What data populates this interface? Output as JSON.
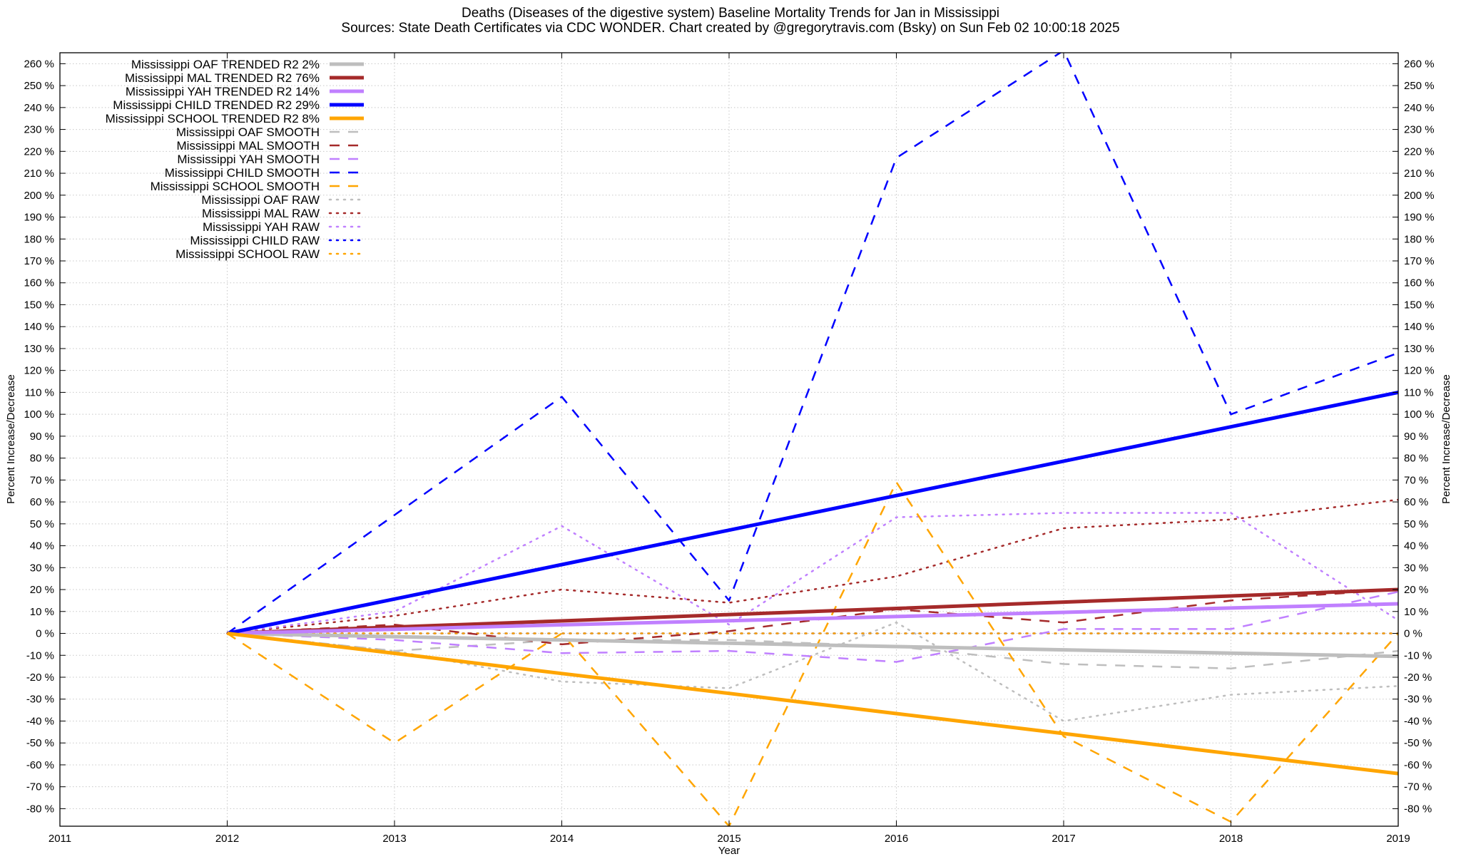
{
  "chart_data": {
    "type": "line",
    "title": "Deaths (Diseases of the digestive system)  Baseline Mortality Trends for Jan in Mississippi",
    "subtitle": "Sources: State Death Certificates via CDC WONDER.              Chart created by @gregorytravis.com (Bsky) on Sun Feb 02 10:00:18 2025",
    "xlabel": "Year",
    "ylabel": "Percent Increase/Decrease",
    "y2label": "Percent Increase/Decrease",
    "xlim": [
      2011,
      2019
    ],
    "ylim": [
      -88,
      265
    ],
    "x_ticks": [
      2011,
      2012,
      2013,
      2014,
      2015,
      2016,
      2017,
      2018,
      2019
    ],
    "x_tick_labels": [
      "2011",
      "2012",
      "2013",
      "2014",
      "2015",
      "2016",
      "2017",
      "2018",
      "2019"
    ],
    "y_ticks": [
      -80,
      -70,
      -60,
      -50,
      -40,
      -30,
      -20,
      -10,
      0,
      10,
      20,
      30,
      40,
      50,
      60,
      70,
      80,
      90,
      100,
      110,
      120,
      130,
      140,
      150,
      160,
      170,
      180,
      190,
      200,
      210,
      220,
      230,
      240,
      250,
      260
    ],
    "y_tick_labels": [
      "-80 %",
      "-70 %",
      "-60 %",
      "-50 %",
      "-40 %",
      "-30 %",
      "-20 %",
      "-10 %",
      "0 %",
      "10 %",
      "20 %",
      "30 %",
      "40 %",
      "50 %",
      "60 %",
      "70 %",
      "80 %",
      "90 %",
      "100 %",
      "110 %",
      "120 %",
      "130 %",
      "140 %",
      "150 %",
      "160 %",
      "170 %",
      "180 %",
      "190 %",
      "200 %",
      "210 %",
      "220 %",
      "230 %",
      "240 %",
      "250 %",
      "260 %"
    ],
    "grid": true,
    "legend_position": "top-left",
    "x": [
      2012,
      2013,
      2014,
      2015,
      2016,
      2017,
      2018,
      2019
    ],
    "series": [
      {
        "name": "Mississippi OAF TRENDED R2  2%",
        "style": "trend",
        "color": "#bebebe",
        "values": [
          0,
          -1.5,
          -3,
          -4.5,
          -6,
          -7.5,
          -9,
          -10.5
        ]
      },
      {
        "name": "Mississippi MAL TRENDED R2  76%",
        "style": "trend",
        "color": "#a52a2a",
        "values": [
          0,
          2.9,
          5.7,
          8.6,
          11.4,
          14.3,
          17.1,
          20
        ]
      },
      {
        "name": "Mississippi YAH TRENDED R2  14%",
        "style": "trend",
        "color": "#c080ff",
        "values": [
          0,
          1.9,
          3.9,
          5.8,
          7.7,
          9.6,
          11.6,
          13.5
        ]
      },
      {
        "name": "Mississippi CHILD TRENDED R2  29%",
        "style": "trend",
        "color": "#0000ff",
        "values": [
          0,
          15.7,
          31.4,
          47.1,
          62.9,
          78.6,
          94.3,
          110
        ]
      },
      {
        "name": "Mississippi SCHOOL TRENDED R2   8%",
        "style": "trend",
        "color": "#ffa500",
        "values": [
          0,
          -9.1,
          -18.3,
          -27.4,
          -36.6,
          -45.7,
          -54.9,
          -64
        ]
      },
      {
        "name": "Mississippi OAF SMOOTH",
        "style": "smooth",
        "color": "#bebebe",
        "values": [
          0,
          -8,
          -3,
          -3,
          -6,
          -14,
          -16,
          -8
        ]
      },
      {
        "name": "Mississippi MAL SMOOTH",
        "style": "smooth",
        "color": "#a52a2a",
        "values": [
          0,
          4,
          -5,
          1,
          11,
          5,
          15,
          20
        ]
      },
      {
        "name": "Mississippi YAH SMOOTH",
        "style": "smooth",
        "color": "#c080ff",
        "values": [
          0,
          -3,
          -9,
          -8,
          -13,
          2,
          2,
          19
        ]
      },
      {
        "name": "Mississippi CHILD SMOOTH",
        "style": "smooth",
        "color": "#0000ff",
        "values": [
          0,
          54,
          108,
          15,
          217,
          266,
          100,
          128
        ]
      },
      {
        "name": "Mississippi SCHOOL SMOOTH",
        "style": "smooth",
        "color": "#ffa500",
        "values": [
          0,
          -50,
          0,
          -88,
          69,
          -47,
          -86,
          0
        ]
      },
      {
        "name": "Mississippi OAF RAW",
        "style": "raw",
        "color": "#bebebe",
        "values": [
          0,
          -8,
          -22,
          -25,
          5,
          -40,
          -28,
          -24
        ]
      },
      {
        "name": "Mississippi MAL RAW",
        "style": "raw",
        "color": "#a52a2a",
        "values": [
          0,
          8,
          20,
          14,
          26,
          48,
          52,
          61
        ]
      },
      {
        "name": "Mississippi YAH RAW",
        "style": "raw",
        "color": "#c080ff",
        "values": [
          0,
          10,
          49,
          4,
          53,
          55,
          55,
          6
        ]
      },
      {
        "name": "Mississippi CHILD RAW",
        "style": "raw",
        "color": "#0000ff",
        "values": [
          0,
          0,
          0,
          0,
          0,
          0,
          0,
          0
        ]
      },
      {
        "name": "Mississippi SCHOOL RAW",
        "style": "raw",
        "color": "#ffa500",
        "values": [
          0,
          0,
          0,
          0,
          0,
          0,
          0,
          0
        ]
      }
    ]
  }
}
